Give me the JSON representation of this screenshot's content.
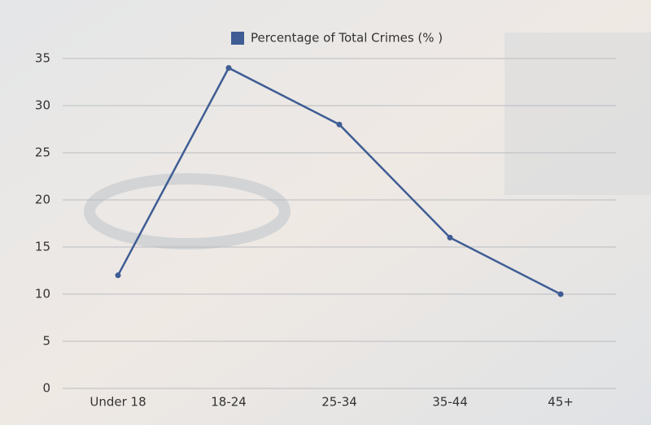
{
  "chart_data": {
    "type": "line",
    "categories": [
      "Under 18",
      "18-24",
      "25-34",
      "35-44",
      "45+"
    ],
    "series": [
      {
        "name": "Percentage of Total Crimes (% )",
        "color": "#3f5d94",
        "values": [
          12,
          34,
          28,
          16,
          10
        ]
      }
    ],
    "ylim": [
      0,
      35
    ],
    "yticks": [
      0,
      5,
      10,
      15,
      20,
      25,
      30,
      35
    ],
    "grid": true,
    "legend": "top"
  }
}
